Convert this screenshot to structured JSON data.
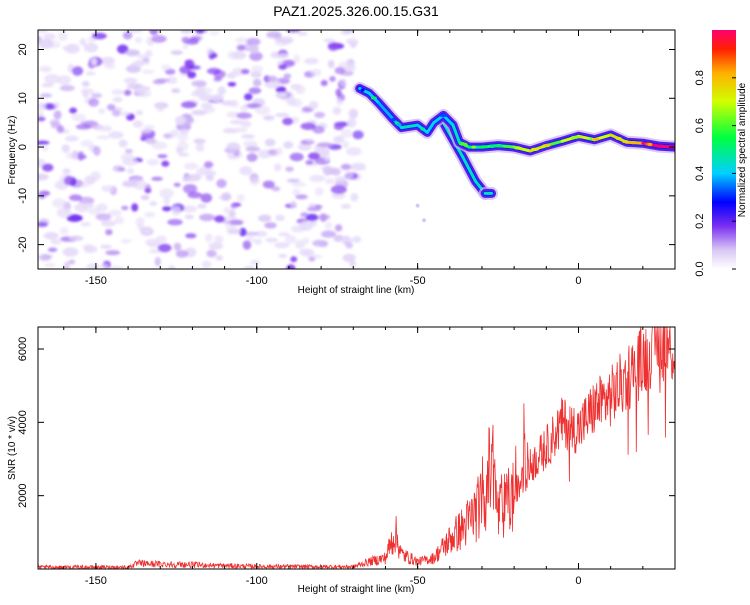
{
  "title": "PAZ1.2025.326.00.15.G31",
  "colorbar": {
    "label": "Normalized spectral amplitude",
    "ticks": [
      "0.0",
      "0.2",
      "0.4",
      "0.6",
      "0.8"
    ]
  },
  "colors": {
    "snr_line": "#ee3030",
    "background": "#ffffff"
  },
  "chart_data": [
    {
      "type": "heatmap",
      "xlabel": "Height of straight line (km)",
      "ylabel": "Frequency (Hz)",
      "xlim": [
        -168,
        30
      ],
      "ylim": [
        -25,
        24
      ],
      "xticks": [
        "-150",
        "-100",
        "-50",
        "0"
      ],
      "yticks": [
        "20",
        "10",
        "0",
        "-10",
        "-20"
      ],
      "noise_region": {
        "x_range": [
          -168,
          -68
        ],
        "amplitude_range": [
          0.0,
          0.2
        ]
      },
      "signal_track": {
        "x": [
          -68,
          -65,
          -62,
          -58,
          -55,
          -50,
          -47,
          -45,
          -42,
          -39,
          -37,
          -34,
          -30,
          -25,
          -20,
          -15,
          -10,
          -5,
          0,
          5,
          10,
          15,
          20,
          25,
          30
        ],
        "frequency": [
          12,
          11,
          9,
          6,
          4,
          4.5,
          3,
          5,
          6.5,
          4.5,
          1,
          0,
          0,
          0.3,
          0,
          -0.8,
          0.3,
          1.2,
          2.2,
          1.5,
          2.5,
          1,
          0.8,
          0.2,
          0
        ],
        "amplitude": [
          0.25,
          0.3,
          0.3,
          0.28,
          0.28,
          0.35,
          0.3,
          0.3,
          0.3,
          0.3,
          0.35,
          0.4,
          0.42,
          0.45,
          0.5,
          0.6,
          0.65,
          0.5,
          0.6,
          0.6,
          0.6,
          0.65,
          0.7,
          0.9,
          0.9
        ]
      },
      "secondary_tracks": [
        {
          "x": [
            -42,
            -36,
            -32,
            -29
          ],
          "frequency": [
            5,
            -2,
            -7,
            -9.5
          ]
        },
        {
          "x": [
            -29,
            -27
          ],
          "frequency": [
            -9.5,
            -9.5
          ]
        }
      ]
    },
    {
      "type": "line",
      "xlabel": "Height of straight line (km)",
      "ylabel": "SNR (10 * v/v)",
      "xlim": [
        -168,
        30
      ],
      "ylim": [
        0,
        6600
      ],
      "xticks": [
        "-150",
        "-100",
        "-50",
        "0"
      ],
      "yticks": [
        "2000",
        "4000",
        "6000"
      ],
      "series": [
        {
          "name": "SNR",
          "x": [
            -168,
            -140,
            -137,
            -100,
            -70,
            -65,
            -60,
            -57,
            -55,
            -50,
            -45,
            -40,
            -35,
            -30,
            -27,
            -25,
            -20,
            -15,
            -10,
            -5,
            0,
            5,
            10,
            15,
            20,
            25,
            30
          ],
          "y": [
            50,
            50,
            150,
            70,
            60,
            200,
            300,
            1000,
            400,
            200,
            300,
            800,
            1200,
            1800,
            2800,
            1500,
            2000,
            2800,
            3300,
            4000,
            3800,
            4400,
            4700,
            5200,
            5700,
            6300,
            6000
          ]
        }
      ]
    }
  ]
}
